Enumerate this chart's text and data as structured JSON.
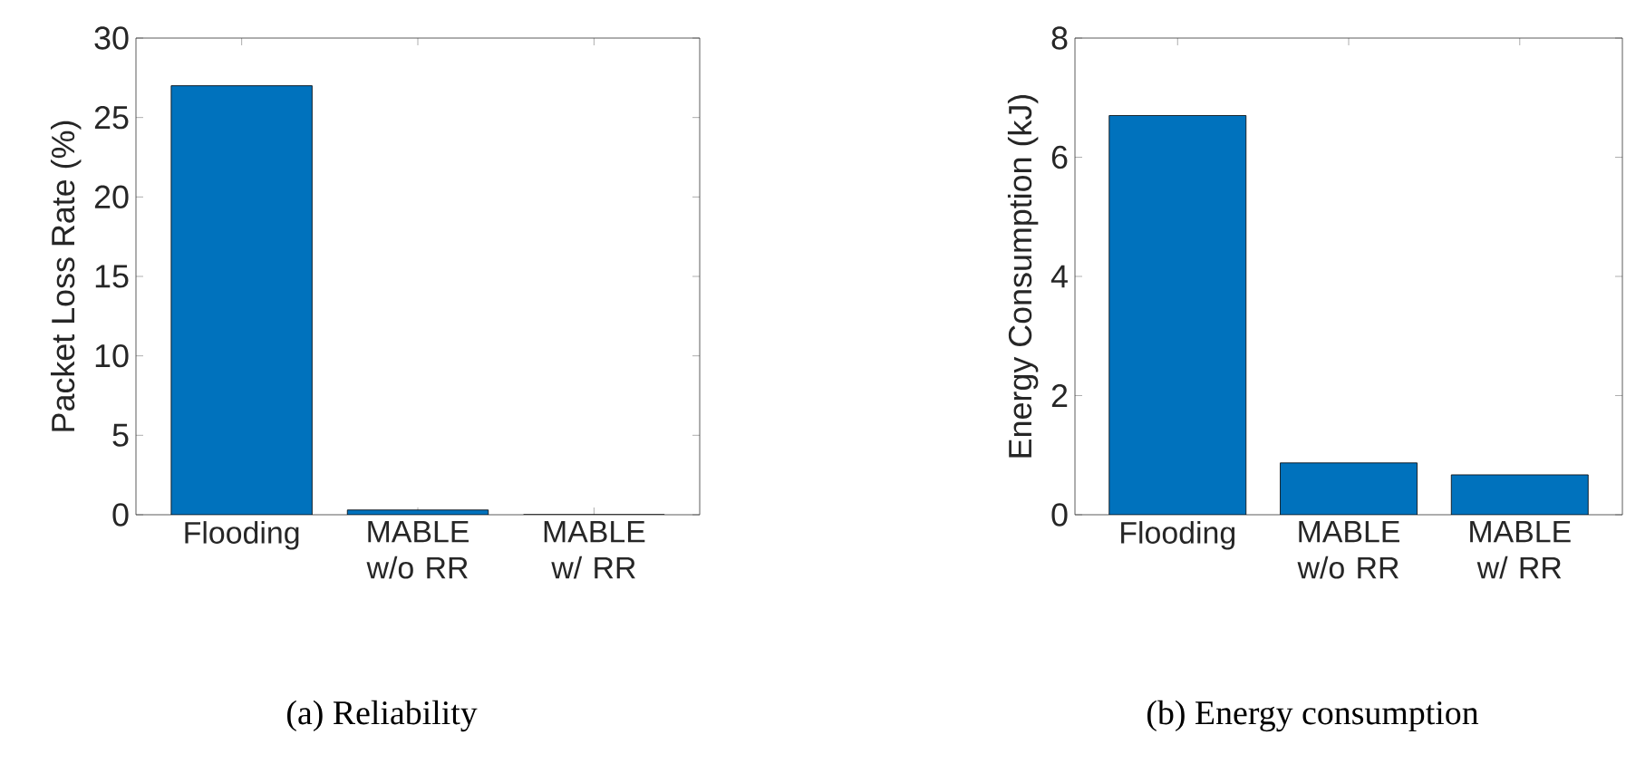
{
  "chart_data": [
    {
      "type": "bar",
      "categories": [
        "Flooding",
        "MABLE w/o RR",
        "MABLE w/ RR"
      ],
      "values": [
        27,
        0.3,
        0
      ],
      "color": "#0072bd",
      "ylabel": "Packet Loss Rate (%)",
      "ylim": [
        0,
        30
      ],
      "yticks": [
        0,
        5,
        10,
        15,
        20,
        25,
        30
      ],
      "annotations": [
        "(a) Reliability"
      ]
    },
    {
      "type": "bar",
      "categories": [
        "Flooding",
        "MABLE w/o RR",
        "MABLE w/ RR"
      ],
      "values": [
        6.7,
        0.87,
        0.67
      ],
      "color": "#0072bd",
      "ylabel": "Energy Consumption (kJ)",
      "ylim": [
        0,
        8
      ],
      "yticks": [
        0,
        2,
        4,
        6,
        8
      ],
      "annotations": [
        "(b) Energy consumption"
      ]
    }
  ]
}
